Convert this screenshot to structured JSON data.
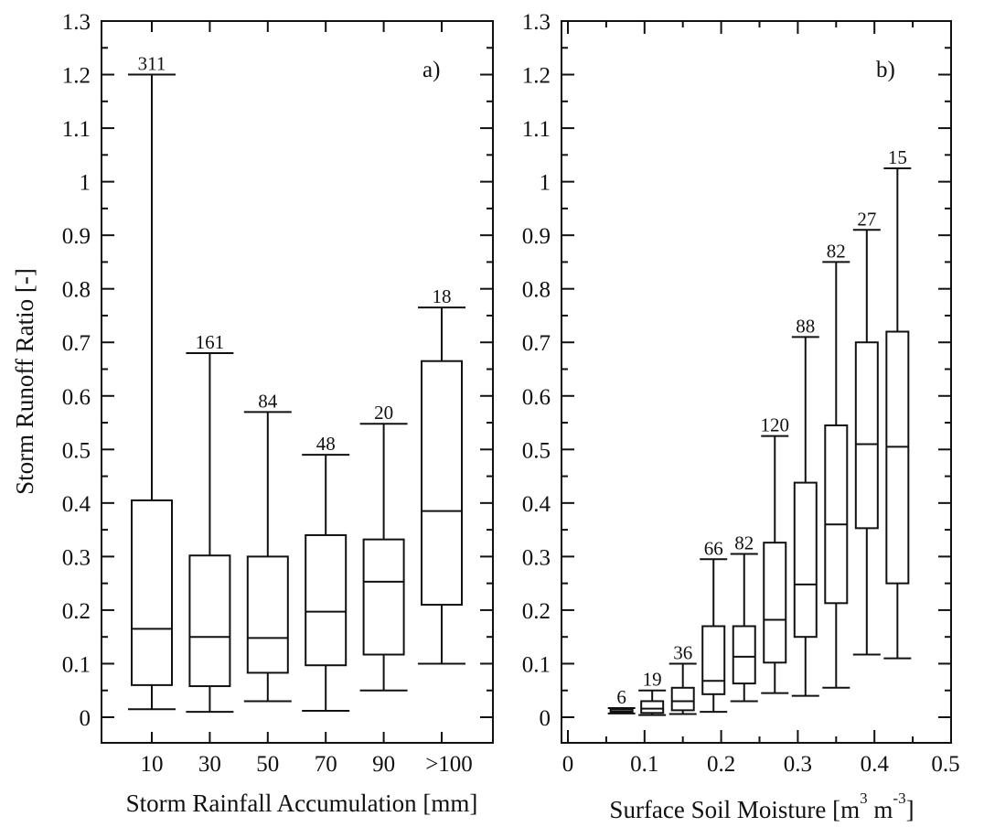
{
  "chart_data": [
    {
      "type": "box",
      "panel_label": "a)",
      "xlabel": "Storm Rainfall Accumulation [mm]",
      "ylabel": "Storm Runoff Ratio [-]",
      "ylim": [
        -0.04,
        1.3
      ],
      "yticks": [
        "0",
        "0.1",
        "0.2",
        "0.3",
        "0.4",
        "0.5",
        "0.6",
        "0.7",
        "0.8",
        "0.9",
        "1",
        "1.1",
        "1.2",
        "1.3"
      ],
      "categories": [
        "10",
        "30",
        "50",
        "70",
        "90",
        ">100"
      ],
      "boxes": [
        {
          "category": "10",
          "count": "311",
          "min": 0.015,
          "q1": 0.06,
          "median": 0.165,
          "q3": 0.405,
          "max": 1.2
        },
        {
          "category": "30",
          "count": "161",
          "min": 0.01,
          "q1": 0.058,
          "median": 0.15,
          "q3": 0.302,
          "max": 0.68
        },
        {
          "category": "50",
          "count": "84",
          "min": 0.03,
          "q1": 0.083,
          "median": 0.148,
          "q3": 0.3,
          "max": 0.57
        },
        {
          "category": "70",
          "count": "48",
          "min": 0.012,
          "q1": 0.097,
          "median": 0.197,
          "q3": 0.34,
          "max": 0.49
        },
        {
          "category": "90",
          "count": "20",
          "min": 0.05,
          "q1": 0.117,
          "median": 0.253,
          "q3": 0.332,
          "max": 0.548
        },
        {
          "category": ">100",
          "count": "18",
          "min": 0.1,
          "q1": 0.21,
          "median": 0.385,
          "q3": 0.665,
          "max": 0.765
        }
      ]
    },
    {
      "type": "box",
      "panel_label": "b)",
      "xlabel_main": "Surface Soil Moisture [m",
      "xlabel_sup1": "3",
      "xlabel_mid": " m",
      "xlabel_sup2": "-3",
      "xlabel_end": "]",
      "xlim": [
        0,
        0.5
      ],
      "xticks": [
        "0",
        "0.1",
        "0.2",
        "0.3",
        "0.4",
        "0.5"
      ],
      "ylim": [
        -0.04,
        1.3
      ],
      "yticks": [
        "0",
        "0.1",
        "0.2",
        "0.3",
        "0.4",
        "0.5",
        "0.6",
        "0.7",
        "0.8",
        "0.9",
        "1",
        "1.1",
        "1.2",
        "1.3"
      ],
      "boxes": [
        {
          "x": 0.07,
          "count": "6",
          "min": 0.007,
          "q1": 0.008,
          "median": 0.011,
          "q3": 0.015,
          "max": 0.017
        },
        {
          "x": 0.11,
          "count": "19",
          "min": 0.004,
          "q1": 0.008,
          "median": 0.016,
          "q3": 0.03,
          "max": 0.05
        },
        {
          "x": 0.15,
          "count": "36",
          "min": 0.006,
          "q1": 0.013,
          "median": 0.03,
          "q3": 0.055,
          "max": 0.1
        },
        {
          "x": 0.19,
          "count": "66",
          "min": 0.01,
          "q1": 0.043,
          "median": 0.068,
          "q3": 0.17,
          "max": 0.295
        },
        {
          "x": 0.23,
          "count": "82",
          "min": 0.03,
          "q1": 0.063,
          "median": 0.113,
          "q3": 0.17,
          "max": 0.305
        },
        {
          "x": 0.27,
          "count": "120",
          "min": 0.045,
          "q1": 0.102,
          "median": 0.182,
          "q3": 0.326,
          "max": 0.525
        },
        {
          "x": 0.31,
          "count": "88",
          "min": 0.04,
          "q1": 0.15,
          "median": 0.248,
          "q3": 0.438,
          "max": 0.71
        },
        {
          "x": 0.35,
          "count": "82",
          "min": 0.055,
          "q1": 0.213,
          "median": 0.36,
          "q3": 0.545,
          "max": 0.85
        },
        {
          "x": 0.39,
          "count": "27",
          "min": 0.117,
          "q1": 0.353,
          "median": 0.51,
          "q3": 0.7,
          "max": 0.91
        },
        {
          "x": 0.43,
          "count": "15",
          "min": 0.11,
          "q1": 0.25,
          "median": 0.505,
          "q3": 0.72,
          "max": 1.025
        }
      ]
    }
  ]
}
